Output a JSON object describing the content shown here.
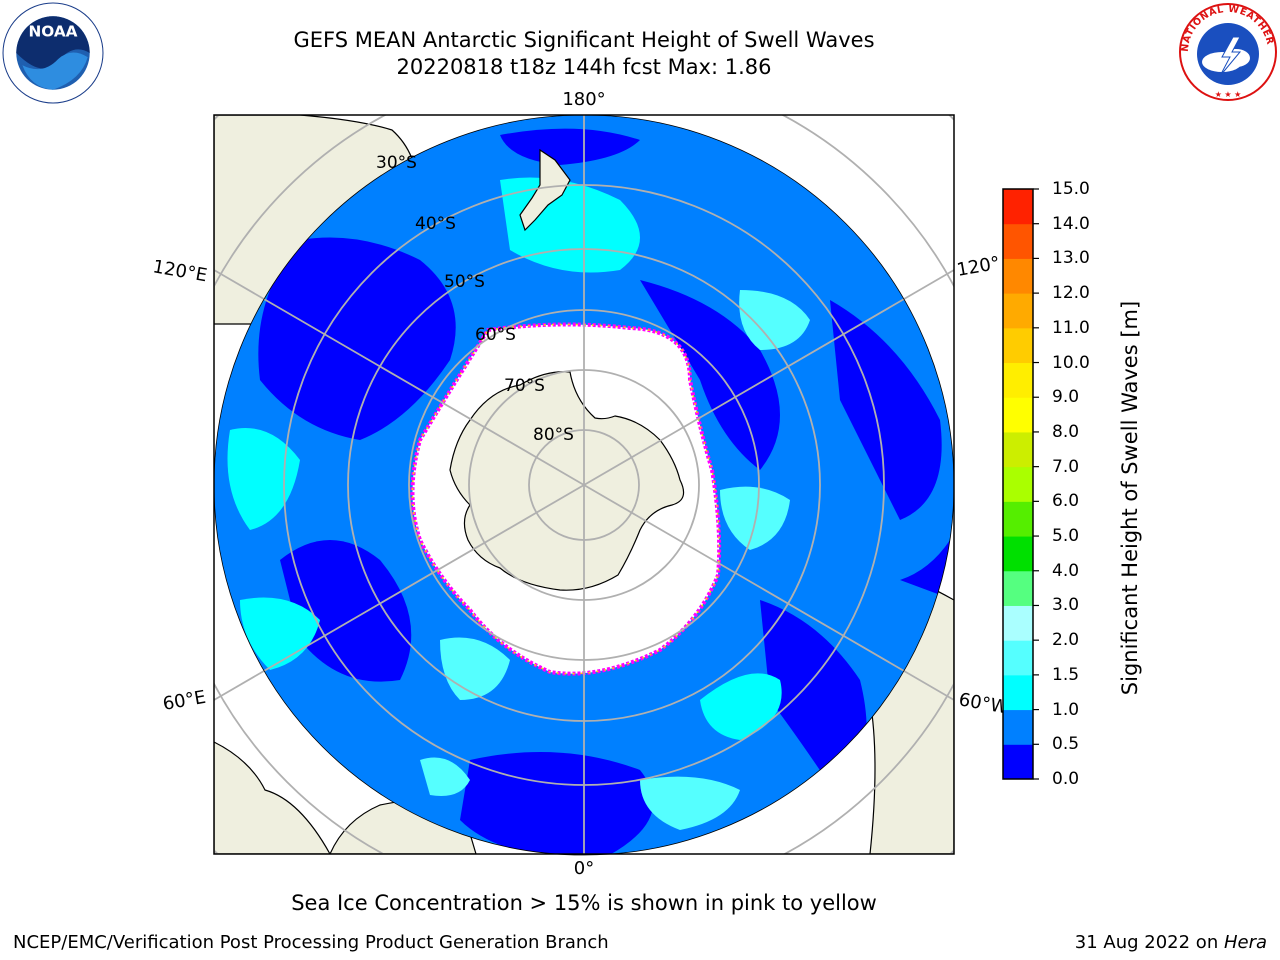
{
  "title": {
    "line1": "GEFS MEAN Antarctic Significant Height of Swell Waves",
    "line2": "20220818 t18z 144h fcst   Max: 1.86"
  },
  "map": {
    "projection": "south-polar-stereographic",
    "longitude_labels": [
      "180°",
      "120°E",
      "120°",
      "60°E",
      "60°W",
      "0°"
    ],
    "latitude_labels": [
      "30°S",
      "40°S",
      "50°S",
      "60°S",
      "70°S",
      "80°S"
    ],
    "land_color": "#efefdf",
    "sea_ice_colors": [
      "#ff00ff",
      "#ffd700"
    ]
  },
  "colorbar": {
    "label": "Significant Height of Swell Waves [m]",
    "ticks": [
      "0.0",
      "0.5",
      "1.0",
      "1.5",
      "2.0",
      "3.0",
      "4.0",
      "5.0",
      "6.0",
      "7.0",
      "8.0",
      "9.0",
      "10.0",
      "11.0",
      "12.0",
      "13.0",
      "14.0",
      "15.0"
    ],
    "colors": [
      "#0000ff",
      "#0080ff",
      "#00ffff",
      "#55ffff",
      "#aaffff",
      "#55ff80",
      "#00e000",
      "#55ee00",
      "#aaff00",
      "#ccee00",
      "#ffff00",
      "#ffee00",
      "#ffcc00",
      "#ffaa00",
      "#ff8800",
      "#ff5500",
      "#ff2200"
    ]
  },
  "note": "Sea Ice Concentration > 15% is shown in pink to yellow",
  "footer": {
    "left": "NCEP/EMC/Verification Post Processing Product Generation Branch",
    "date": "31 Aug 2022 on ",
    "machine": "Hera"
  },
  "logos": {
    "noaa": "NOAA",
    "nws": "NATIONAL WEATHER SERVICE"
  }
}
